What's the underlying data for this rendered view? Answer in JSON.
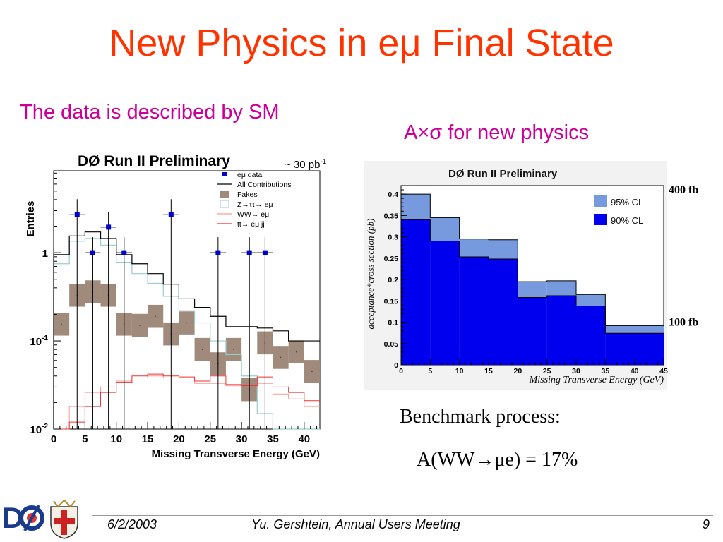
{
  "slide": {
    "title": "New Physics in eμ Final State",
    "left_subtitle": "The data is described by SM",
    "right_subtitle": "A×σ for new physics",
    "benchmark_label": "Benchmark process:",
    "benchmark_value": "A(WW→μe) = 17%",
    "footer": {
      "date": "6/2/2003",
      "author_meeting": "Yu. Gershtein, Annual Users Meeting",
      "page": "9"
    },
    "logos": [
      "dzero-logo",
      "university-crest-icon"
    ]
  },
  "chart_data": [
    {
      "type": "bar",
      "title": "DØ Run II Preliminary",
      "annotation": "~ 30 pb",
      "annotation_sup": "-1",
      "xlabel": "Missing Transverse Energy (GeV)",
      "ylabel": "Entries",
      "x_ticks": [
        "0",
        "5",
        "10",
        "15",
        "20",
        "25",
        "30",
        "35",
        "40"
      ],
      "y_ticks": [
        {
          "v": 1,
          "base": "1",
          "exp": ""
        },
        {
          "v": 0.1,
          "base": "10",
          "exp": "-1"
        },
        {
          "v": 0.01,
          "base": "10",
          "exp": "-2"
        }
      ],
      "xlim": [
        0,
        42.5
      ],
      "ylim": [
        0.01,
        8.5
      ],
      "y_scale": "log",
      "bin_width": 2.5,
      "bin_edges": [
        0,
        2.5,
        5,
        7.5,
        10,
        12.5,
        15,
        17.5,
        20,
        22.5,
        25,
        27.5,
        30,
        32.5,
        35,
        37.5,
        40,
        42.5
      ],
      "legend": [
        {
          "label": "eμ data",
          "style": "marker",
          "color": "#0000cc"
        },
        {
          "label": "All Contributions",
          "style": "line",
          "color": "#000000"
        },
        {
          "label": "Fakes",
          "style": "box",
          "color": "#a08a7c"
        },
        {
          "label": "Z→ττ→ eμ",
          "style": "box-outline",
          "color": "#99cccc"
        },
        {
          "label": "WW→ eμ",
          "style": "line",
          "color": "#ff9999"
        },
        {
          "label": "tt→ eμ jj",
          "style": "line",
          "color": "#ee3333"
        }
      ],
      "series": [
        {
          "name": "All Contributions",
          "values": [
            0.95,
            1.55,
            1.72,
            1.45,
            0.95,
            0.75,
            0.58,
            0.44,
            0.3,
            0.24,
            0.19,
            0.145,
            0.145,
            0.14,
            0.13,
            0.1,
            0.1
          ]
        },
        {
          "name": "Z→ττ→ eμ",
          "values": [
            0.75,
            1.35,
            1.45,
            1.22,
            0.78,
            0.58,
            0.45,
            0.32,
            0.22,
            0.16,
            0.1,
            0.07,
            0.04,
            0.015,
            0.009,
            0.009,
            0.009
          ]
        },
        {
          "name": "WW→ eμ",
          "values": [
            0.009,
            0.018,
            0.026,
            0.03,
            0.035,
            0.038,
            0.04,
            0.038,
            0.036,
            0.033,
            0.033,
            0.031,
            0.03,
            0.033,
            0.025,
            0.022,
            0.018
          ]
        },
        {
          "name": "tt→ eμ jj",
          "values": [
            0.009,
            0.012,
            0.018,
            0.026,
            0.034,
            0.04,
            0.042,
            0.04,
            0.039,
            0.035,
            0.04,
            0.032,
            0.031,
            0.039,
            0.03,
            0.026,
            0.021
          ]
        },
        {
          "name": "Fakes",
          "values": [
            0.155,
            0.33,
            0.36,
            0.33,
            0.155,
            0.15,
            0.19,
            0.12,
            0.16,
            0.08,
            0.055,
            0.08,
            0.028,
            0.095,
            0.065,
            0.075,
            0.045
          ],
          "err_frac": 0.35
        },
        {
          "name": "eμ data",
          "points": [
            {
              "x": 3.75,
              "y": 2.7
            },
            {
              "x": 6.25,
              "y": 1
            },
            {
              "x": 8.75,
              "y": 1.95
            },
            {
              "x": 11.25,
              "y": 1
            },
            {
              "x": 18.75,
              "y": 2.7
            },
            {
              "x": 26.25,
              "y": 1
            },
            {
              "x": 31.25,
              "y": 1
            },
            {
              "x": 33.75,
              "y": 1
            }
          ]
        }
      ]
    },
    {
      "type": "bar",
      "title": "DØ Run II Preliminary",
      "xlabel": "Missing Transverse Energy (GeV)",
      "ylabel": "acceptance*cross section (pb)",
      "x_ticks": [
        "0",
        "5",
        "10",
        "15",
        "20",
        "25",
        "30",
        "35",
        "40",
        "45"
      ],
      "y_ticks": [
        "0",
        "0.05",
        "0.1",
        "0.15",
        "0.2",
        "0.25",
        "0.3",
        "0.35",
        "0.4"
      ],
      "xlim": [
        0,
        45
      ],
      "ylim": [
        0,
        0.42
      ],
      "bin_edges": [
        0,
        5,
        10,
        15,
        20,
        25,
        30,
        35,
        45
      ],
      "legend": [
        {
          "label": "95% CL",
          "color": "#7799dd"
        },
        {
          "label": "90% CL",
          "color": "#0000ee"
        }
      ],
      "side_labels": [
        {
          "label": "400 fb",
          "y": 0.41
        },
        {
          "label": "100 fb",
          "y": 0.1
        }
      ],
      "series": [
        {
          "name": "95% CL",
          "values": [
            0.4,
            0.345,
            0.295,
            0.293,
            0.195,
            0.197,
            0.165,
            0.092
          ]
        },
        {
          "name": "90% CL",
          "values": [
            0.34,
            0.29,
            0.253,
            0.248,
            0.158,
            0.162,
            0.138,
            0.074
          ]
        }
      ]
    }
  ]
}
